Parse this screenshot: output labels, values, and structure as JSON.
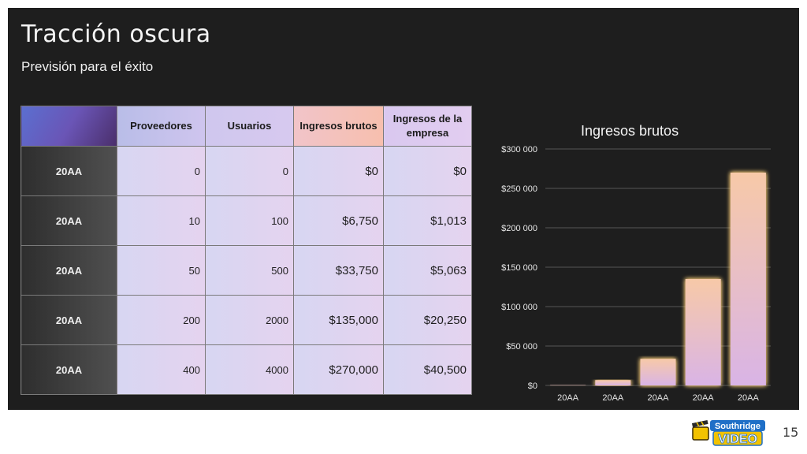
{
  "slide": {
    "title": "Tracción oscura",
    "subtitle": "Previsión para el éxito",
    "page_number": "15"
  },
  "logo": {
    "line1": "Southridge",
    "line2": "VIDEO",
    "icon": "clapperboard-icon"
  },
  "table": {
    "headers": [
      "",
      "Proveedores",
      "Usuarios",
      "Ingresos brutos",
      "Ingresos de la empresa"
    ],
    "rows": [
      [
        "20AA",
        "0",
        "0",
        "$0",
        "$0"
      ],
      [
        "20AA",
        "10",
        "100",
        "$6,750",
        "$1,013"
      ],
      [
        "20AA",
        "50",
        "500",
        "$33,750",
        "$5,063"
      ],
      [
        "20AA",
        "200",
        "2000",
        "$135,000",
        "$20,250"
      ],
      [
        "20AA",
        "400",
        "4000",
        "$270,000",
        "$40,500"
      ]
    ]
  },
  "colors": {
    "slide_bg": "#1e1e1e",
    "bar_top": "#f7c9a8",
    "bar_bottom": "#d9b4e6",
    "bar_glow": "#ffd27a"
  },
  "chart_data": {
    "type": "bar",
    "title": "Ingresos brutos",
    "categories": [
      "20AA",
      "20AA",
      "20AA",
      "20AA",
      "20AA"
    ],
    "values": [
      0,
      6750,
      33750,
      135000,
      270000
    ],
    "ylim": [
      0,
      300000
    ],
    "yticks": [
      0,
      50000,
      100000,
      150000,
      200000,
      250000,
      300000
    ],
    "ytick_labels": [
      "$0",
      "$50 000",
      "$100 000",
      "$150 000",
      "$200 000",
      "$250 000",
      "$300 000"
    ],
    "grid": true,
    "legend": "none"
  }
}
